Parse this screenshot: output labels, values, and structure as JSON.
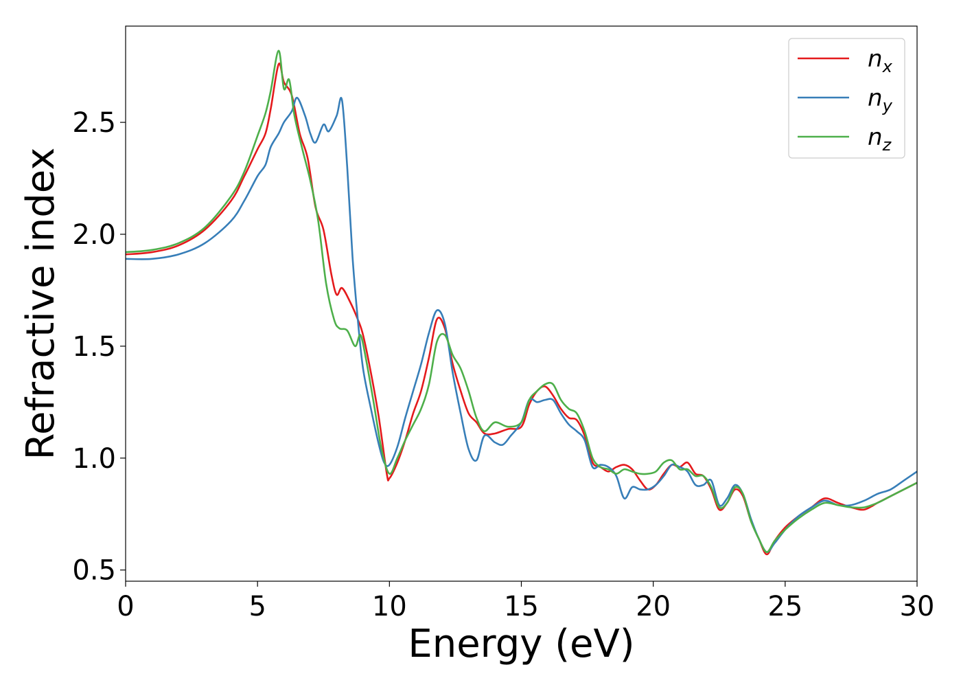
{
  "chart_data": {
    "type": "line",
    "title": "",
    "xlabel": "Energy (eV)",
    "ylabel": "Refractive index",
    "xlim": [
      0,
      30
    ],
    "ylim": [
      0.45,
      2.93
    ],
    "xticks": [
      0,
      5,
      10,
      15,
      20,
      25,
      30
    ],
    "xtick_labels": [
      "0",
      "5",
      "10",
      "15",
      "20",
      "25",
      "30"
    ],
    "yticks": [
      0.5,
      1.0,
      1.5,
      2.0,
      2.5
    ],
    "ytick_labels": [
      "0.5",
      "1.0",
      "1.5",
      "2.0",
      "2.5"
    ],
    "grid": false,
    "legend_position": "top-right",
    "series": [
      {
        "name": "n_x",
        "label_base": "n",
        "label_sub": "x",
        "color": "#e41a1c",
        "x": [
          0,
          1,
          2,
          3,
          4,
          4.5,
          5,
          5.3,
          5.5,
          5.8,
          6.0,
          6.3,
          6.6,
          6.9,
          7.2,
          7.5,
          7.8,
          8.0,
          8.2,
          8.5,
          8.8,
          9.0,
          9.3,
          9.6,
          9.9,
          10.0,
          10.3,
          10.6,
          10.9,
          11.2,
          11.5,
          11.8,
          12.1,
          12.4,
          12.7,
          13.0,
          13.3,
          13.6,
          14.0,
          14.5,
          15.0,
          15.3,
          15.6,
          15.9,
          16.2,
          16.5,
          16.8,
          17.1,
          17.4,
          17.7,
          18.0,
          18.3,
          18.6,
          18.9,
          19.2,
          19.5,
          19.8,
          20.1,
          20.4,
          20.7,
          21.0,
          21.3,
          21.6,
          21.9,
          22.2,
          22.5,
          22.8,
          23.1,
          23.4,
          23.7,
          24.0,
          24.3,
          24.6,
          25.0,
          25.5,
          26.0,
          26.5,
          27.0,
          27.5,
          28.0,
          28.5,
          29.0,
          29.5,
          30.0
        ],
        "y": [
          1.91,
          1.92,
          1.95,
          2.02,
          2.15,
          2.26,
          2.38,
          2.45,
          2.56,
          2.76,
          2.68,
          2.62,
          2.45,
          2.34,
          2.12,
          2.02,
          1.82,
          1.73,
          1.76,
          1.7,
          1.62,
          1.55,
          1.38,
          1.18,
          0.93,
          0.91,
          0.98,
          1.08,
          1.2,
          1.3,
          1.45,
          1.62,
          1.58,
          1.42,
          1.3,
          1.2,
          1.16,
          1.11,
          1.11,
          1.13,
          1.14,
          1.24,
          1.3,
          1.32,
          1.28,
          1.22,
          1.18,
          1.17,
          1.1,
          0.98,
          0.96,
          0.94,
          0.96,
          0.97,
          0.95,
          0.9,
          0.86,
          0.88,
          0.93,
          0.97,
          0.96,
          0.98,
          0.93,
          0.92,
          0.86,
          0.77,
          0.8,
          0.86,
          0.83,
          0.72,
          0.64,
          0.57,
          0.63,
          0.69,
          0.74,
          0.78,
          0.82,
          0.8,
          0.78,
          0.77,
          0.8,
          0.83,
          0.86,
          0.89
        ]
      },
      {
        "name": "n_y",
        "label_base": "n",
        "label_sub": "y",
        "color": "#377eb8",
        "x": [
          0,
          1,
          2,
          3,
          4,
          4.5,
          5,
          5.3,
          5.5,
          5.8,
          6.0,
          6.3,
          6.5,
          6.8,
          7.0,
          7.2,
          7.5,
          7.7,
          8.0,
          8.2,
          8.4,
          8.6,
          8.8,
          9.0,
          9.3,
          9.6,
          9.8,
          10.0,
          10.3,
          10.6,
          10.9,
          11.2,
          11.5,
          11.8,
          12.1,
          12.4,
          12.7,
          13.0,
          13.3,
          13.6,
          14.0,
          14.3,
          14.6,
          15.0,
          15.3,
          15.6,
          15.9,
          16.2,
          16.5,
          16.8,
          17.1,
          17.4,
          17.7,
          18.0,
          18.3,
          18.6,
          18.9,
          19.2,
          19.5,
          19.8,
          20.1,
          20.4,
          20.7,
          21.0,
          21.3,
          21.6,
          21.9,
          22.2,
          22.5,
          22.8,
          23.1,
          23.4,
          23.7,
          24.0,
          24.3,
          24.6,
          25.0,
          25.5,
          26.0,
          26.5,
          27.0,
          27.5,
          28.0,
          28.5,
          29.0,
          29.5,
          30.0
        ],
        "y": [
          1.89,
          1.89,
          1.91,
          1.96,
          2.06,
          2.15,
          2.26,
          2.31,
          2.39,
          2.45,
          2.5,
          2.55,
          2.61,
          2.53,
          2.45,
          2.41,
          2.49,
          2.46,
          2.53,
          2.6,
          2.3,
          1.9,
          1.62,
          1.4,
          1.22,
          1.06,
          0.98,
          0.97,
          1.05,
          1.18,
          1.3,
          1.42,
          1.56,
          1.66,
          1.6,
          1.38,
          1.2,
          1.04,
          0.99,
          1.1,
          1.07,
          1.06,
          1.1,
          1.16,
          1.26,
          1.25,
          1.26,
          1.26,
          1.2,
          1.15,
          1.12,
          1.08,
          0.96,
          0.97,
          0.96,
          0.92,
          0.82,
          0.87,
          0.86,
          0.86,
          0.88,
          0.92,
          0.97,
          0.96,
          0.94,
          0.88,
          0.88,
          0.9,
          0.79,
          0.82,
          0.88,
          0.84,
          0.73,
          0.64,
          0.58,
          0.62,
          0.68,
          0.74,
          0.78,
          0.81,
          0.79,
          0.79,
          0.81,
          0.84,
          0.86,
          0.9,
          0.94
        ]
      },
      {
        "name": "n_z",
        "label_base": "n",
        "label_sub": "z",
        "color": "#4daf4a",
        "x": [
          0,
          1,
          2,
          3,
          4,
          4.5,
          5,
          5.3,
          5.5,
          5.8,
          6.0,
          6.2,
          6.4,
          6.7,
          7.0,
          7.3,
          7.6,
          7.9,
          8.1,
          8.4,
          8.7,
          8.9,
          9.1,
          9.4,
          9.7,
          10.0,
          10.3,
          10.6,
          10.9,
          11.2,
          11.5,
          11.8,
          12.1,
          12.4,
          12.7,
          13.0,
          13.3,
          13.6,
          14.0,
          14.5,
          15.0,
          15.3,
          15.6,
          15.9,
          16.2,
          16.5,
          16.8,
          17.1,
          17.4,
          17.7,
          18.0,
          18.3,
          18.6,
          18.9,
          19.2,
          19.5,
          19.8,
          20.1,
          20.4,
          20.7,
          21.0,
          21.3,
          21.6,
          21.9,
          22.2,
          22.5,
          22.8,
          23.1,
          23.4,
          23.7,
          24.0,
          24.3,
          24.6,
          25.0,
          25.5,
          26.0,
          26.5,
          27.0,
          27.5,
          28.0,
          28.5,
          29.0,
          29.5,
          30.0
        ],
        "y": [
          1.92,
          1.93,
          1.96,
          2.03,
          2.17,
          2.28,
          2.44,
          2.54,
          2.64,
          2.82,
          2.65,
          2.69,
          2.53,
          2.38,
          2.24,
          2.06,
          1.78,
          1.62,
          1.58,
          1.57,
          1.5,
          1.55,
          1.45,
          1.25,
          1.04,
          0.93,
          1.0,
          1.08,
          1.15,
          1.22,
          1.33,
          1.52,
          1.55,
          1.46,
          1.4,
          1.3,
          1.18,
          1.12,
          1.16,
          1.14,
          1.16,
          1.26,
          1.3,
          1.33,
          1.33,
          1.26,
          1.22,
          1.2,
          1.12,
          1.0,
          0.96,
          0.95,
          0.93,
          0.95,
          0.94,
          0.93,
          0.93,
          0.94,
          0.98,
          0.99,
          0.95,
          0.95,
          0.92,
          0.92,
          0.87,
          0.78,
          0.8,
          0.87,
          0.84,
          0.72,
          0.64,
          0.58,
          0.63,
          0.68,
          0.73,
          0.77,
          0.8,
          0.79,
          0.78,
          0.78,
          0.8,
          0.83,
          0.86,
          0.89
        ]
      }
    ]
  }
}
